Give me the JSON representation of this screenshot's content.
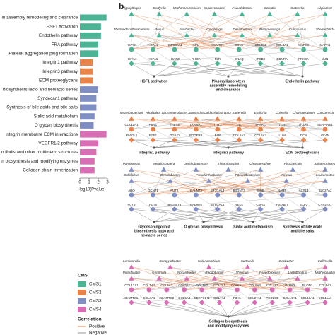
{
  "chart_data": {
    "type": "bar",
    "orientation": "horizontal",
    "categories": [
      "in assembly remodeling and clearance",
      "HSF1 activation",
      "Endothelin pathway",
      "FRA pathway",
      "Platelet aggregation plug formation",
      "Integrin1 pathway",
      "Integrin3 pathway",
      "ECM proteoglycans",
      "biosynthesis lacto and neolacto series",
      "Syndecan1 pathway",
      "Synthesis of bile acids and bile salts",
      "Sialic acid metabolism",
      "O glycan biosynthesis",
      "integrin membrane ECM interactions",
      "VEGFR1/2 pathway",
      "n fibrils and other multimeric structures",
      "n biosynthesis and modifying enzymes",
      "Collagen chain trimerization"
    ],
    "values": [
      2.9,
      2.3,
      2.3,
      2.0,
      2.0,
      1.4,
      1.4,
      1.4,
      2.0,
      1.8,
      1.8,
      1.6,
      1.5,
      2.9,
      2.0,
      1.8,
      1.6,
      1.6
    ],
    "colors": [
      "#4db395",
      "#4db395",
      "#4db395",
      "#4db395",
      "#4db395",
      "#e8834a",
      "#e8834a",
      "#e8834a",
      "#7f8fc4",
      "#7f8fc4",
      "#7f8fc4",
      "#7f8fc4",
      "#7f8fc4",
      "#d86fb5",
      "#d86fb5",
      "#d86fb5",
      "#d86fb5",
      "#d86fb5"
    ],
    "xlabel": "-log10(Pvalue)",
    "xlim": [
      0,
      3
    ],
    "xticks": [
      0,
      1,
      2,
      3
    ]
  },
  "legend": {
    "title": "CMS",
    "items": [
      {
        "name": "CMS1",
        "color": "#4db395"
      },
      {
        "name": "CMS2",
        "color": "#e8834a"
      },
      {
        "name": "CMS3",
        "color": "#7f8fc4"
      },
      {
        "name": "CMS4",
        "color": "#d86fb5"
      }
    ]
  },
  "correlation_legend": {
    "title": "Correlation",
    "items": [
      {
        "name": "Positive",
        "color": "#e8834a"
      },
      {
        "name": "Negative",
        "color": "#9a9a9a"
      }
    ]
  },
  "panel_b": {
    "label": "b",
    "groups": [
      {
        "taxa": [
          [
            "Algoriphagus",
            "Bradyella",
            "Methanomicrobium",
            "Sphaerochaeta",
            "Pseudobacter",
            "Serratia",
            "Sutterella",
            "Algibacter"
          ],
          [
            "Thermodesulfobacterium",
            "Flexus",
            "Fusibacter",
            "Cytophaga",
            "Desulfovibrio",
            "Flammeovirga",
            "Cupriavidus",
            "Thermobifida"
          ]
        ],
        "genes": [
          [
            "HSPH1",
            "HSPA1",
            "HSP90AA1",
            "LPL",
            "SCARB1",
            "EDN1",
            "COL3A1",
            "COL4A1",
            "MAPK3",
            "MAPK1"
          ],
          [
            "HSPA4",
            "HSPA8",
            "H2AFZ",
            "RHOA",
            "F2R",
            "GNAQ",
            "ITGB3",
            "EDNRA",
            "PRKCA",
            "JUN"
          ]
        ],
        "pathways": [
          [
            "HSF1 activation"
          ],
          [
            "Plasma lipoprotein",
            "assembly remodeling",
            "and clearance"
          ],
          [
            "Endothelin pathway"
          ]
        ]
      },
      {
        "taxa": [
          [
            "Ignavibacterium",
            "Alkalitalea",
            "Sporanaerobacter",
            "Jannaschia",
            "Caldicellulosiruptor",
            "Sutterella",
            "Ehrlichia",
            "Colwellia",
            "Chamaesiphon",
            "Coccomyxa"
          ]
        ],
        "genes": [
          [
            "COL11A1",
            "FBN1",
            "THBS2",
            "COL5A1",
            "THY1",
            "TNC",
            "SPARC",
            "ITGB1",
            "ITGA5",
            "SERPINE1"
          ],
          [
            "PLAGL1",
            "FGF1",
            "ITGA11",
            "PDGFRB",
            "FAP",
            "COL6A2",
            "COL6A3",
            "LUM",
            "DCN",
            "VCAN"
          ]
        ],
        "pathways": [
          [
            "Integrin1 pathway"
          ],
          [
            "Integrin3 pathway"
          ],
          [
            "ECM proteoglycans"
          ]
        ]
      },
      {
        "taxa": [
          [
            "Parvimonas",
            "Metallosphaera",
            "Ornithobacterium",
            "Thiomicrospira",
            "Chamaesiphon",
            "Phocaeicola",
            "Sphaerochaeta"
          ],
          [
            "Sulfolobus",
            "Dehalobacter",
            "Pseudarthrobacter",
            "Faecalibacterium",
            "Jonesia",
            "Leuconostoc"
          ]
        ],
        "genes": [
          [
            "ABO",
            "GCNT1",
            "FUT2",
            "GALNT3",
            "ST3GAL4",
            "B3GNT3",
            "GNE",
            "NANS",
            "ACSL1",
            "SLC27A2"
          ],
          [
            "FUT3",
            "FUT6",
            "B4GALT4",
            "GALNT6",
            "ST6GAL1",
            "NEU1",
            "CMAS",
            "HSD3B7",
            "SCP2",
            "CYP27A1"
          ]
        ],
        "pathways": [
          [
            "Glycosphingolipid",
            "biosynthesis lacto and",
            "neolacto series"
          ],
          [
            "O glycan biosynthesis"
          ],
          [
            "Sialic acid metabolism"
          ],
          [
            "Synthesis of bile acids",
            "and bile salts"
          ]
        ]
      },
      {
        "taxa": [
          [
            "Leminorella",
            "Campylobacter",
            "Halanaerobium",
            "Sutterella",
            "Geobacter",
            "Collinsella"
          ],
          [
            "Polaribacter",
            "Gemmata",
            "Nocardioides",
            "Rhodobacter",
            "Thermus",
            "Pseudomonas",
            "Lactobacillus",
            "Methylobacter"
          ]
        ],
        "genes": [
          [
            "COL12A1",
            "COL1A1",
            "COL5A2",
            "COL5A1",
            "COL1A2",
            "COL3A1",
            "COL6A1",
            "COL6A3",
            "COL4A2",
            "P4HA2",
            "PLOD2",
            "COL8A1"
          ],
          [
            "ADAMTS14",
            "COL4A1",
            "ADAMTS2",
            "COL5A3",
            "SERPINH1",
            "COL7A1",
            "P3H1",
            "COL27A1",
            "PCOLCE",
            "COL16A1",
            "COL18A1",
            "COL11A1"
          ]
        ],
        "pathways": [
          [
            "Collagen biosynthesis",
            "and modifying enzymes"
          ]
        ]
      }
    ]
  }
}
